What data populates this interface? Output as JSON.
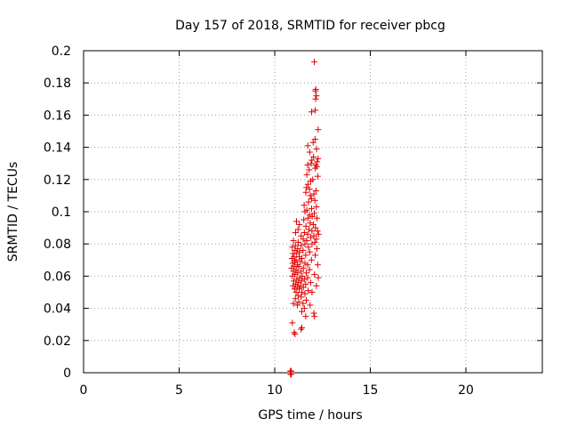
{
  "chart_data": {
    "type": "scatter",
    "title": "Day 157 of 2018, SRMTID for receiver pbcg",
    "xlabel": "GPS time / hours",
    "ylabel": "SRMTID / TECUs",
    "xlim": [
      0,
      24
    ],
    "ylim": [
      0,
      0.2
    ],
    "xticks": [
      0,
      5,
      10,
      15,
      20
    ],
    "xtick_labels": [
      "0",
      "5",
      "10",
      "15",
      "20"
    ],
    "yticks": [
      0,
      0.02,
      0.04,
      0.06,
      0.08,
      0.1,
      0.12,
      0.14,
      0.16,
      0.18,
      0.2
    ],
    "ytick_labels": [
      "0",
      "0.02",
      "0.04",
      "0.06",
      "0.08",
      "0.1",
      "0.12",
      "0.14",
      "0.16",
      "0.18",
      "0.2"
    ],
    "grid": true,
    "marker": "plus",
    "colors": {
      "marker": "#e00000",
      "grid": "#a0a0a0",
      "axis": "#000000"
    },
    "series": [
      {
        "name": "SRMTID",
        "points": [
          [
            12.07,
            0.193
          ],
          [
            12.15,
            0.176
          ],
          [
            12.13,
            0.175
          ],
          [
            12.18,
            0.172
          ],
          [
            12.14,
            0.17
          ],
          [
            12.12,
            0.163
          ],
          [
            11.93,
            0.162
          ],
          [
            12.27,
            0.151
          ],
          [
            12.11,
            0.145
          ],
          [
            12.01,
            0.143
          ],
          [
            12.19,
            0.139
          ],
          [
            11.73,
            0.141
          ],
          [
            11.83,
            0.137
          ],
          [
            12.03,
            0.134
          ],
          [
            11.94,
            0.132
          ],
          [
            12.22,
            0.131
          ],
          [
            12.14,
            0.129
          ],
          [
            12.2,
            0.128
          ],
          [
            12.12,
            0.127
          ],
          [
            12.27,
            0.133
          ],
          [
            11.91,
            0.13
          ],
          [
            11.72,
            0.129
          ],
          [
            11.8,
            0.126
          ],
          [
            11.68,
            0.123
          ],
          [
            12.25,
            0.122
          ],
          [
            11.99,
            0.12
          ],
          [
            11.88,
            0.119
          ],
          [
            11.74,
            0.117
          ],
          [
            11.66,
            0.115
          ],
          [
            11.82,
            0.114
          ],
          [
            12.16,
            0.113
          ],
          [
            11.63,
            0.112
          ],
          [
            12.05,
            0.111
          ],
          [
            11.86,
            0.11
          ],
          [
            11.92,
            0.108
          ],
          [
            12.1,
            0.107
          ],
          [
            11.77,
            0.106
          ],
          [
            11.54,
            0.104
          ],
          [
            12.18,
            0.103
          ],
          [
            11.93,
            0.102
          ],
          [
            11.68,
            0.101
          ],
          [
            11.58,
            0.1
          ],
          [
            12.07,
            0.099
          ],
          [
            11.83,
            0.098
          ],
          [
            11.96,
            0.097
          ],
          [
            12.21,
            0.096
          ],
          [
            11.74,
            0.096
          ],
          [
            11.52,
            0.095
          ],
          [
            11.14,
            0.094
          ],
          [
            11.85,
            0.093
          ],
          [
            12.02,
            0.092
          ],
          [
            11.29,
            0.092
          ],
          [
            11.63,
            0.091
          ],
          [
            12.13,
            0.09
          ],
          [
            11.79,
            0.089
          ],
          [
            11.22,
            0.089
          ],
          [
            12.24,
            0.088
          ],
          [
            11.95,
            0.088
          ],
          [
            11.55,
            0.087
          ],
          [
            11.09,
            0.087
          ],
          [
            12.29,
            0.086
          ],
          [
            11.72,
            0.086
          ],
          [
            11.38,
            0.085
          ],
          [
            12.05,
            0.085
          ],
          [
            11.88,
            0.084
          ],
          [
            12.18,
            0.083
          ],
          [
            11.49,
            0.083
          ],
          [
            10.98,
            0.082
          ],
          [
            11.68,
            0.082
          ],
          [
            11.23,
            0.081
          ],
          [
            12.1,
            0.081
          ],
          [
            11.58,
            0.08
          ],
          [
            11.95,
            0.08
          ],
          [
            11.08,
            0.079
          ],
          [
            11.38,
            0.079
          ],
          [
            10.92,
            0.078
          ],
          [
            11.76,
            0.078
          ],
          [
            11.2,
            0.077
          ],
          [
            12.21,
            0.077
          ],
          [
            11.48,
            0.076
          ],
          [
            11.06,
            0.076
          ],
          [
            11.3,
            0.075
          ],
          [
            11.83,
            0.075
          ],
          [
            10.96,
            0.074
          ],
          [
            11.15,
            0.074
          ],
          [
            11.62,
            0.073
          ],
          [
            12.12,
            0.073
          ],
          [
            11.02,
            0.072
          ],
          [
            11.28,
            0.072
          ],
          [
            11.42,
            0.071
          ],
          [
            10.9,
            0.071
          ],
          [
            11.12,
            0.07
          ],
          [
            11.92,
            0.07
          ],
          [
            11.05,
            0.069
          ],
          [
            11.35,
            0.069
          ],
          [
            11.58,
            0.068
          ],
          [
            10.94,
            0.068
          ],
          [
            11.18,
            0.067
          ],
          [
            11.72,
            0.067
          ],
          [
            12.25,
            0.067
          ],
          [
            11.02,
            0.066
          ],
          [
            11.26,
            0.066
          ],
          [
            11.5,
            0.065
          ],
          [
            10.88,
            0.065
          ],
          [
            11.12,
            0.064
          ],
          [
            11.82,
            0.064
          ],
          [
            11.38,
            0.063
          ],
          [
            10.98,
            0.063
          ],
          [
            11.65,
            0.062
          ],
          [
            11.2,
            0.062
          ],
          [
            12.08,
            0.061
          ],
          [
            11.06,
            0.061
          ],
          [
            11.44,
            0.06
          ],
          [
            10.92,
            0.06
          ],
          [
            11.3,
            0.059
          ],
          [
            11.72,
            0.059
          ],
          [
            12.28,
            0.059
          ],
          [
            11.15,
            0.058
          ],
          [
            11.55,
            0.058
          ],
          [
            11.0,
            0.057
          ],
          [
            11.4,
            0.057
          ],
          [
            11.88,
            0.056
          ],
          [
            11.24,
            0.056
          ],
          [
            11.1,
            0.055
          ],
          [
            11.62,
            0.055
          ],
          [
            10.96,
            0.054
          ],
          [
            11.35,
            0.054
          ],
          [
            12.18,
            0.054
          ],
          [
            11.18,
            0.053
          ],
          [
            11.5,
            0.053
          ],
          [
            11.04,
            0.052
          ],
          [
            11.28,
            0.052
          ],
          [
            11.75,
            0.051
          ],
          [
            11.42,
            0.05
          ],
          [
            11.12,
            0.05
          ],
          [
            11.95,
            0.05
          ],
          [
            11.58,
            0.049
          ],
          [
            11.22,
            0.048
          ],
          [
            11.38,
            0.047
          ],
          [
            11.08,
            0.046
          ],
          [
            11.65,
            0.045
          ],
          [
            11.26,
            0.044
          ],
          [
            11.48,
            0.043
          ],
          [
            10.98,
            0.043
          ],
          [
            11.85,
            0.042
          ],
          [
            11.18,
            0.042
          ],
          [
            11.55,
            0.04
          ],
          [
            11.42,
            0.038
          ],
          [
            12.05,
            0.037
          ],
          [
            11.62,
            0.035
          ],
          [
            12.08,
            0.035
          ],
          [
            10.92,
            0.031
          ],
          [
            11.42,
            0.028
          ],
          [
            11.38,
            0.027
          ],
          [
            11.02,
            0.025
          ],
          [
            11.06,
            0.024
          ],
          [
            10.82,
            0.001
          ],
          [
            10.84,
            0.001
          ],
          [
            10.86,
            0.001
          ],
          [
            10.82,
            0.0
          ],
          [
            10.85,
            0.0
          ],
          [
            10.87,
            0.0
          ],
          [
            10.83,
            -0.001
          ],
          [
            10.86,
            -0.001
          ]
        ]
      }
    ]
  }
}
